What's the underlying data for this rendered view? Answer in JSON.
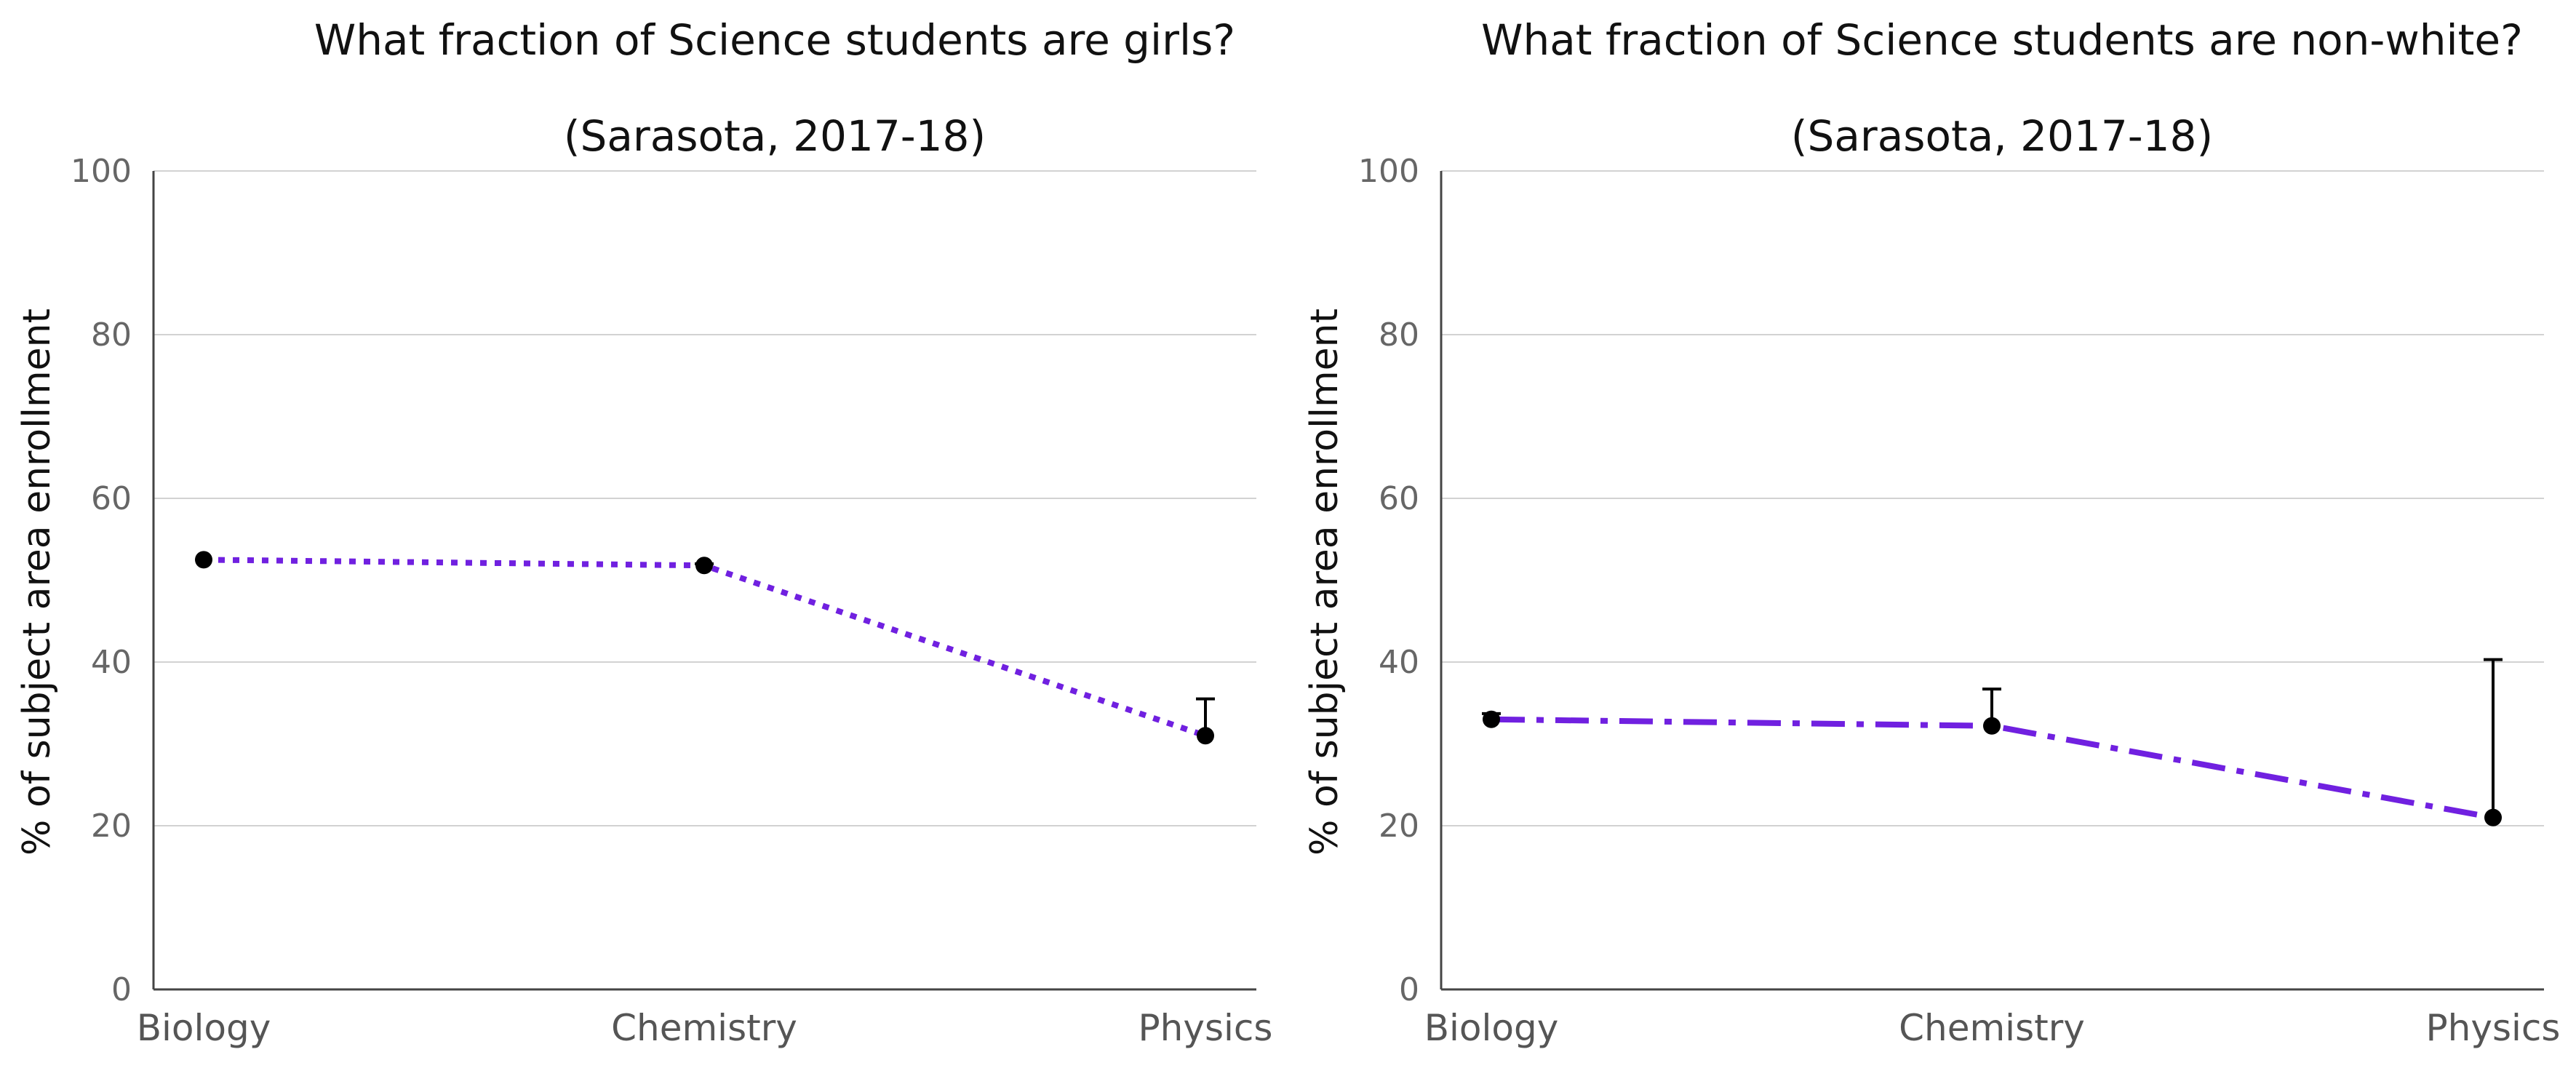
{
  "accent_color": "#7020E0",
  "chart_data": [
    {
      "type": "line",
      "title": "What fraction of Science students are girls?",
      "subtitle": "(Sarasota, 2017-18)",
      "categories": [
        "Biology",
        "Chemistry",
        "Physics"
      ],
      "values": [
        52.5,
        51.8,
        31.0
      ],
      "error_upper": [
        52.5,
        52.0,
        35.5
      ],
      "line_style": "dotted",
      "line_color": "#7020E0",
      "marker_color": "#000000",
      "ylabel": "% of subject area enrollment",
      "xlabel": "",
      "ylim": [
        0,
        100
      ],
      "yticks": [
        "0",
        "20",
        "40",
        "60",
        "80",
        "100"
      ],
      "grid": true,
      "legend": "none"
    },
    {
      "type": "line",
      "title": "What fraction of Science students are non-white?",
      "subtitle": "(Sarasota, 2017-18)",
      "categories": [
        "Biology",
        "Chemistry",
        "Physics"
      ],
      "values": [
        33.0,
        32.2,
        21.0
      ],
      "error_upper": [
        33.7,
        36.7,
        40.3
      ],
      "line_style": "dash-dot",
      "line_color": "#7020E0",
      "marker_color": "#000000",
      "ylabel": "% of subject area enrollment",
      "xlabel": "",
      "ylim": [
        0,
        100
      ],
      "yticks": [
        "0",
        "20",
        "40",
        "60",
        "80",
        "100"
      ],
      "grid": true,
      "legend": "none"
    }
  ]
}
